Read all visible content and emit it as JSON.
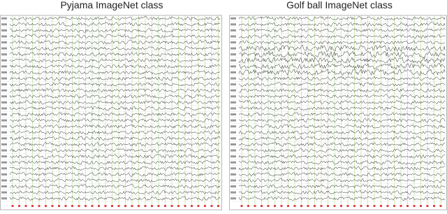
{
  "panels": [
    {
      "title": "Pyjama ImageNet class"
    },
    {
      "title": "Golf ball ImageNet class"
    }
  ]
}
